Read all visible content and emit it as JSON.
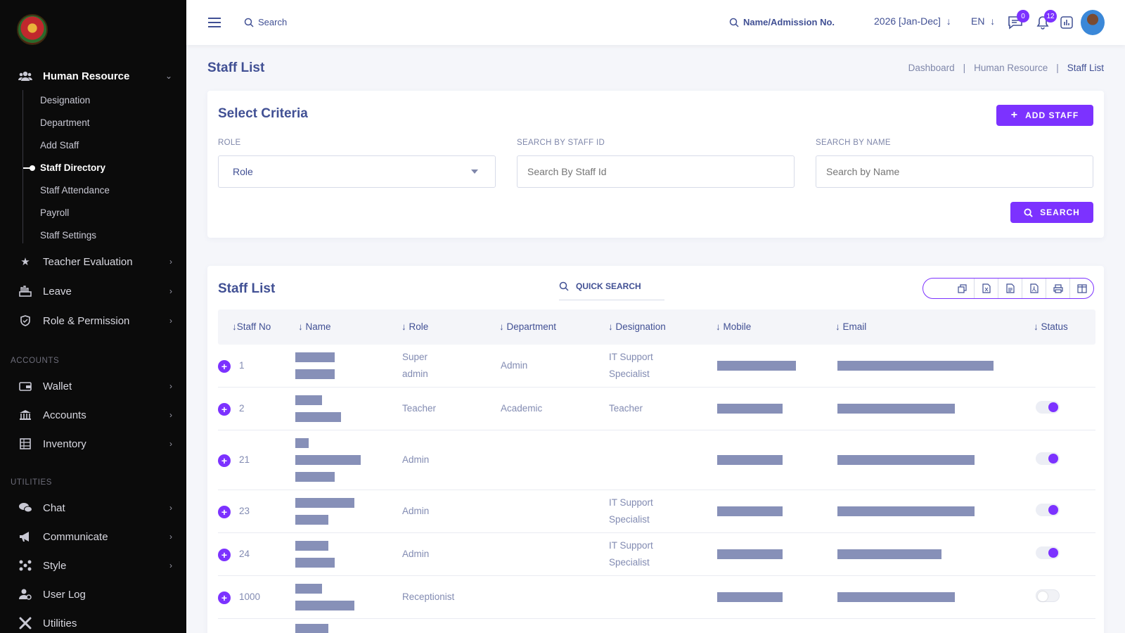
{
  "sidebar": {
    "menu": [
      {
        "label": "Human Resource",
        "icon": "users-icon",
        "expanded": true
      },
      {
        "label": "Teacher Evaluation",
        "icon": "star-icon"
      },
      {
        "label": "Leave",
        "icon": "leave-icon"
      },
      {
        "label": "Role & Permission",
        "icon": "shield-icon"
      }
    ],
    "hr_items": [
      "Designation",
      "Department",
      "Add Staff",
      "Staff Directory",
      "Staff Attendance",
      "Payroll",
      "Staff Settings"
    ],
    "active_item": "Staff Directory",
    "accounts_title": "ACCOUNTS",
    "accounts_menu": [
      {
        "label": "Wallet",
        "icon": "wallet-icon"
      },
      {
        "label": "Accounts",
        "icon": "bank-icon"
      },
      {
        "label": "Inventory",
        "icon": "inventory-icon"
      }
    ],
    "utilities_title": "UTILITIES",
    "utilities_menu": [
      {
        "label": "Chat",
        "icon": "chat-icon"
      },
      {
        "label": "Communicate",
        "icon": "megaphone-icon"
      },
      {
        "label": "Style",
        "icon": "style-icon"
      },
      {
        "label": "User Log",
        "icon": "user-log-icon"
      },
      {
        "label": "Utilities",
        "icon": "tools-icon"
      }
    ]
  },
  "topbar": {
    "search": "Search",
    "name_search": "Name/Admission No.",
    "year": "2026 [Jan-Dec]",
    "lang": "EN",
    "messages_count": "0",
    "notifications_count": "12"
  },
  "page": {
    "title": "Staff List",
    "breadcrumb": [
      "Dashboard",
      "Human Resource",
      "Staff List"
    ]
  },
  "criteria": {
    "title": "Select Criteria",
    "add_staff": "ADD STAFF",
    "role_label": "ROLE",
    "role_value": "Role",
    "staff_id_label": "SEARCH BY STAFF ID",
    "staff_id_placeholder": "Search By Staff Id",
    "name_label": "SEARCH BY NAME",
    "name_placeholder": "Search by Name",
    "search_button": "SEARCH"
  },
  "staff_list": {
    "title": "Staff List",
    "quick_search": "QUICK SEARCH",
    "columns": [
      "Staff No",
      "Name",
      "Role",
      "Department",
      "Designation",
      "Mobile",
      "Email",
      "Status"
    ],
    "rows": [
      {
        "no": "1",
        "role": [
          "Super",
          "admin"
        ],
        "department": "Admin",
        "designation": [
          "IT Support",
          "Specialist"
        ],
        "status": null
      },
      {
        "no": "2",
        "role": [
          "Teacher"
        ],
        "department": "Academic",
        "designation": [
          "Teacher"
        ],
        "status": "on"
      },
      {
        "no": "21",
        "role": [
          "Admin"
        ],
        "department": "",
        "designation": [],
        "status": "on"
      },
      {
        "no": "23",
        "role": [
          "Admin"
        ],
        "department": "",
        "designation": [
          "IT Support",
          "Specialist"
        ],
        "status": "on"
      },
      {
        "no": "24",
        "role": [
          "Admin"
        ],
        "department": "",
        "designation": [
          "IT Support",
          "Specialist"
        ],
        "status": "on"
      },
      {
        "no": "1000",
        "role": [
          "Receptionist"
        ],
        "department": "",
        "designation": [],
        "status": "off"
      }
    ]
  },
  "colors": {
    "accent": "#7c32ff",
    "text": "#415094",
    "sidebar": "#0b0b0b"
  }
}
